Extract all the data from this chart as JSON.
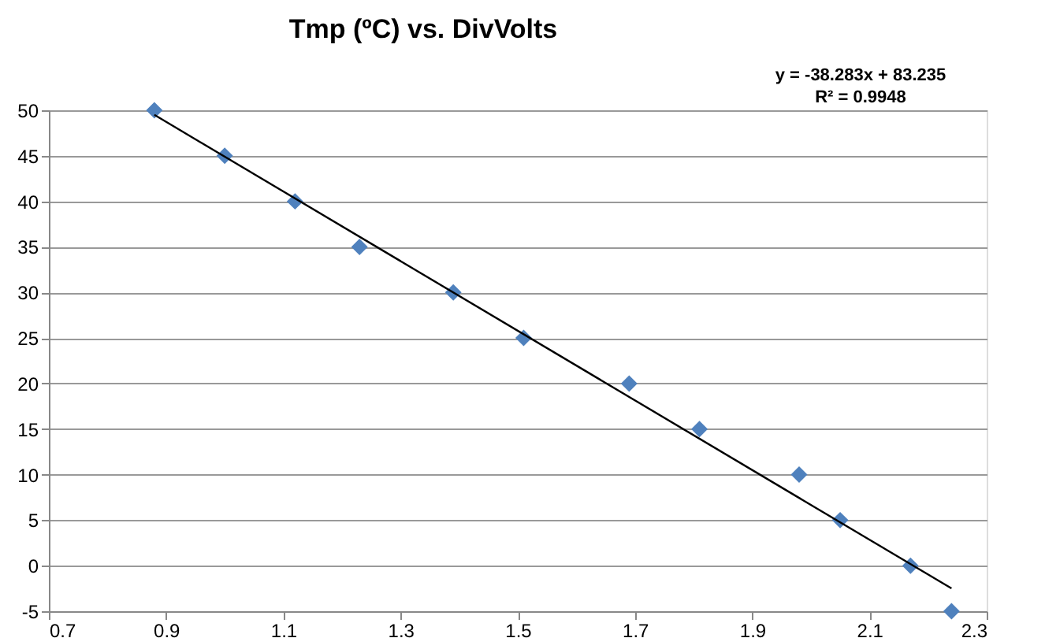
{
  "chart_data": {
    "type": "scatter",
    "title": "Tmp (ºC) vs. DivVolts",
    "annotations": [
      "y = -38.283x + 83.235",
      "R² = 0.9948"
    ],
    "x": [
      0.88,
      1.0,
      1.12,
      1.23,
      1.39,
      1.51,
      1.69,
      1.81,
      1.98,
      2.05,
      2.17,
      2.24
    ],
    "series": [
      {
        "color": "#4f81bd",
        "marker": "diamond",
        "values": [
          50,
          45,
          40,
          35,
          30,
          25,
          20,
          15,
          10,
          5,
          0,
          -5
        ]
      },
      {
        "type": "line",
        "color": "#000000",
        "x": [
          0.88,
          2.24
        ],
        "values": [
          49.5,
          -2.5
        ],
        "marker": "none",
        "line_style": "solid"
      }
    ],
    "xlim": [
      0.7,
      2.3
    ],
    "xticks": [
      0.7,
      0.9,
      1.1,
      1.3,
      1.5,
      1.7,
      1.9,
      2.1,
      2.3
    ],
    "ylim": [
      -5,
      50
    ],
    "yticks": [
      -5,
      0,
      5,
      10,
      15,
      20,
      25,
      30,
      35,
      40,
      45,
      50
    ],
    "grid": "y"
  }
}
